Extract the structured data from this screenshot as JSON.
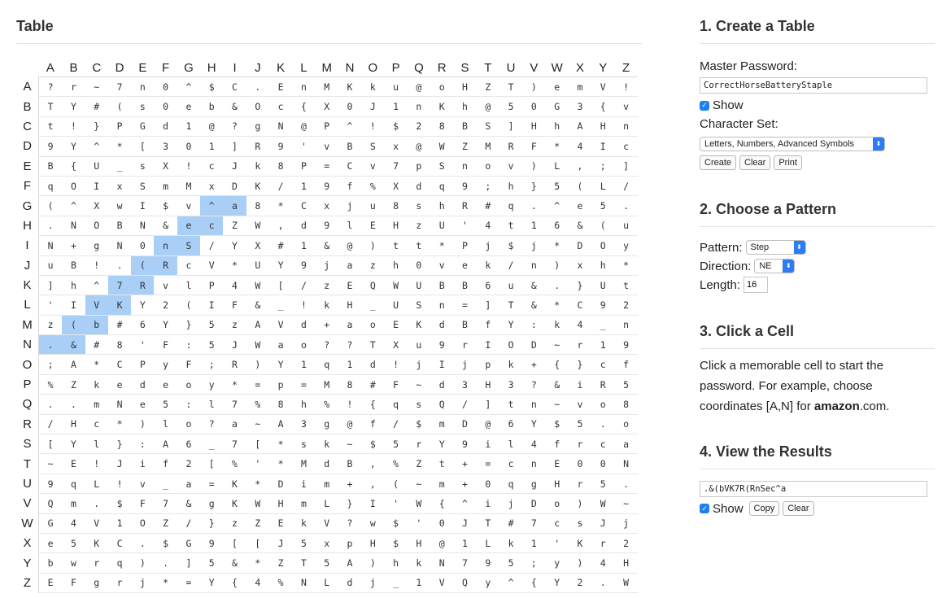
{
  "table_title": "Table",
  "columns": [
    "A",
    "B",
    "C",
    "D",
    "E",
    "F",
    "G",
    "H",
    "I",
    "J",
    "K",
    "L",
    "M",
    "N",
    "O",
    "P",
    "Q",
    "R",
    "S",
    "T",
    "U",
    "V",
    "W",
    "X",
    "Y",
    "Z"
  ],
  "rows": [
    {
      "label": "A",
      "cells": [
        "?",
        "r",
        "~",
        "7",
        "n",
        "0",
        "^",
        "$",
        "C",
        ".",
        "E",
        "n",
        "M",
        "K",
        "k",
        "u",
        "@",
        "o",
        "H",
        "Z",
        "T",
        ")",
        "e",
        "m",
        "V",
        "!"
      ]
    },
    {
      "label": "B",
      "cells": [
        "T",
        "Y",
        "#",
        "(",
        "s",
        "0",
        "e",
        "b",
        "&",
        "O",
        "c",
        "{",
        "X",
        "0",
        "J",
        "1",
        "n",
        "K",
        "h",
        "@",
        "5",
        "0",
        "G",
        "3",
        "{",
        "v"
      ]
    },
    {
      "label": "C",
      "cells": [
        "t",
        "!",
        "}",
        "P",
        "G",
        "d",
        "1",
        "@",
        "?",
        "g",
        "N",
        "@",
        "P",
        "^",
        "!",
        "$",
        "2",
        "8",
        "B",
        "S",
        "]",
        "H",
        "h",
        "A",
        "H",
        "n"
      ]
    },
    {
      "label": "D",
      "cells": [
        "9",
        "Y",
        "^",
        "*",
        "[",
        "3",
        "0",
        "1",
        "]",
        "R",
        "9",
        "'",
        "v",
        "B",
        "S",
        "x",
        "@",
        "W",
        "Z",
        "M",
        "R",
        "F",
        "*",
        "4",
        "I",
        "c"
      ]
    },
    {
      "label": "E",
      "cells": [
        "B",
        "{",
        "U",
        "_",
        "s",
        "X",
        "!",
        "c",
        "J",
        "k",
        "8",
        "P",
        "=",
        "C",
        "v",
        "7",
        "p",
        "S",
        "n",
        "o",
        "v",
        ")",
        "L",
        ",",
        ";",
        "]"
      ]
    },
    {
      "label": "F",
      "cells": [
        "q",
        "O",
        "I",
        "x",
        "S",
        "m",
        "M",
        "x",
        "D",
        "K",
        "/",
        "1",
        "9",
        "f",
        "%",
        "X",
        "d",
        "q",
        "9",
        ";",
        "h",
        "}",
        "5",
        "(",
        "L",
        "/"
      ]
    },
    {
      "label": "G",
      "cells": [
        "(",
        "^",
        "X",
        "w",
        "I",
        "$",
        "v",
        "^",
        "a",
        "8",
        "*",
        "C",
        "x",
        "j",
        "u",
        "8",
        "s",
        "h",
        "R",
        "#",
        "q",
        ".",
        "^",
        "e",
        "5",
        "."
      ]
    },
    {
      "label": "H",
      "cells": [
        ".",
        "N",
        "O",
        "B",
        "N",
        "&",
        "e",
        "c",
        "Z",
        "W",
        ",",
        "d",
        "9",
        "l",
        "E",
        "H",
        "z",
        "U",
        "'",
        "4",
        "t",
        "1",
        "6",
        "&",
        "(",
        "u"
      ]
    },
    {
      "label": "I",
      "cells": [
        "N",
        "+",
        "g",
        "N",
        "0",
        "n",
        "S",
        "/",
        "Y",
        "X",
        "#",
        "1",
        "&",
        "@",
        ")",
        "t",
        "t",
        "*",
        "P",
        "j",
        "$",
        "j",
        "*",
        "D",
        "O",
        "y"
      ]
    },
    {
      "label": "J",
      "cells": [
        "u",
        "B",
        "!",
        ".",
        "(",
        "R",
        "c",
        "V",
        "*",
        "U",
        "Y",
        "9",
        "j",
        "a",
        "z",
        "h",
        "0",
        "v",
        "e",
        "k",
        "/",
        "n",
        ")",
        "x",
        "h",
        "*"
      ]
    },
    {
      "label": "K",
      "cells": [
        "]",
        "h",
        "^",
        "7",
        "R",
        "v",
        "l",
        "P",
        "4",
        "W",
        "[",
        "/",
        "z",
        "E",
        "Q",
        "W",
        "U",
        "B",
        "B",
        "6",
        "u",
        "&",
        ".",
        "}",
        "U",
        "t"
      ]
    },
    {
      "label": "L",
      "cells": [
        "'",
        "I",
        "V",
        "K",
        "Y",
        "2",
        "(",
        "I",
        "F",
        "&",
        "_",
        "!",
        "k",
        "H",
        "_",
        "U",
        "S",
        "n",
        "=",
        "]",
        "T",
        "&",
        "*",
        "C",
        "9",
        "2"
      ]
    },
    {
      "label": "M",
      "cells": [
        "z",
        "(",
        "b",
        "#",
        "6",
        "Y",
        "}",
        "5",
        "z",
        "A",
        "V",
        "d",
        "+",
        "a",
        "o",
        "E",
        "K",
        "d",
        "B",
        "f",
        "Y",
        ":",
        "k",
        "4",
        "_",
        "n"
      ]
    },
    {
      "label": "N",
      "cells": [
        ".",
        "&",
        "#",
        "8",
        "'",
        "F",
        ":",
        "5",
        "J",
        "W",
        "a",
        "o",
        "?",
        "?",
        "T",
        "X",
        "u",
        "9",
        "r",
        "I",
        "O",
        "D",
        "~",
        "r",
        "1",
        "9"
      ]
    },
    {
      "label": "O",
      "cells": [
        ";",
        "A",
        "*",
        "C",
        "P",
        "y",
        "F",
        ";",
        "R",
        ")",
        "Y",
        "1",
        "q",
        "1",
        "d",
        "!",
        "j",
        "I",
        "j",
        "p",
        "k",
        "+",
        "{",
        "}",
        "c",
        "f"
      ]
    },
    {
      "label": "P",
      "cells": [
        "%",
        "Z",
        "k",
        "e",
        "d",
        "e",
        "o",
        "y",
        "*",
        "=",
        "p",
        "=",
        "M",
        "8",
        "#",
        "F",
        "~",
        "d",
        "3",
        "H",
        "3",
        "?",
        "&",
        "i",
        "R",
        "5"
      ]
    },
    {
      "label": "Q",
      "cells": [
        ".",
        ".",
        "m",
        "N",
        "e",
        "5",
        ":",
        "l",
        "7",
        "%",
        "8",
        "h",
        "%",
        "!",
        "{",
        "q",
        "s",
        "Q",
        "/",
        "]",
        "t",
        "n",
        "~",
        "v",
        "o",
        "8"
      ]
    },
    {
      "label": "R",
      "cells": [
        "/",
        "H",
        "c",
        "*",
        ")",
        "l",
        "o",
        "?",
        "a",
        "~",
        "A",
        "3",
        "g",
        "@",
        "f",
        "/",
        "$",
        "m",
        "D",
        "@",
        "6",
        "Y",
        "$",
        "5",
        ".",
        "o"
      ]
    },
    {
      "label": "S",
      "cells": [
        "[",
        "Y",
        "l",
        "}",
        ":",
        "A",
        "6",
        "_",
        "7",
        "[",
        "*",
        "s",
        "k",
        "~",
        "$",
        "5",
        "r",
        "Y",
        "9",
        "i",
        "l",
        "4",
        "f",
        "r",
        "c",
        "a"
      ]
    },
    {
      "label": "T",
      "cells": [
        "~",
        "E",
        "!",
        "J",
        "i",
        "f",
        "2",
        "[",
        "%",
        "'",
        "*",
        "M",
        "d",
        "B",
        ",",
        "%",
        "Z",
        "t",
        "+",
        "=",
        "c",
        "n",
        "E",
        "0",
        "0",
        "N"
      ]
    },
    {
      "label": "U",
      "cells": [
        "9",
        "q",
        "L",
        "!",
        "v",
        "_",
        "a",
        "=",
        "K",
        "*",
        "D",
        "i",
        "m",
        "+",
        ",",
        "(",
        "~",
        "m",
        "+",
        "0",
        "q",
        "g",
        "H",
        "r",
        "5",
        "."
      ]
    },
    {
      "label": "V",
      "cells": [
        "Q",
        "m",
        ".",
        "$",
        "F",
        "7",
        "&",
        "g",
        "K",
        "W",
        "H",
        "m",
        "L",
        "}",
        "I",
        "'",
        "W",
        "{",
        "^",
        "i",
        "j",
        "D",
        "o",
        ")",
        "W",
        "~"
      ]
    },
    {
      "label": "W",
      "cells": [
        "G",
        "4",
        "V",
        "1",
        "O",
        "Z",
        "/",
        "}",
        "z",
        "Z",
        "E",
        "k",
        "V",
        "?",
        "w",
        "$",
        "'",
        "0",
        "J",
        "T",
        "#",
        "7",
        "c",
        "s",
        "J",
        "j"
      ]
    },
    {
      "label": "X",
      "cells": [
        "e",
        "5",
        "K",
        "C",
        ".",
        "$",
        "G",
        "9",
        "[",
        "[",
        "J",
        "5",
        "x",
        "p",
        "H",
        "$",
        "H",
        "@",
        "1",
        "L",
        "k",
        "1",
        "'",
        "K",
        "r",
        "2"
      ]
    },
    {
      "label": "Y",
      "cells": [
        "b",
        "w",
        "r",
        "q",
        ")",
        ".",
        "]",
        "5",
        "&",
        "*",
        "Z",
        "T",
        "5",
        "A",
        ")",
        "h",
        "k",
        "N",
        "7",
        "9",
        "5",
        ";",
        "y",
        ")",
        "4",
        "H"
      ]
    },
    {
      "label": "Z",
      "cells": [
        "E",
        "F",
        "g",
        "r",
        "j",
        "*",
        "=",
        "Y",
        "{",
        "4",
        "%",
        "N",
        "L",
        "d",
        "j",
        "_",
        "1",
        "V",
        "Q",
        "y",
        "^",
        "{",
        "Y",
        "2",
        ".",
        "W"
      ]
    }
  ],
  "highlighted_cells": [
    [
      13,
      0
    ],
    [
      13,
      1
    ],
    [
      12,
      1
    ],
    [
      12,
      2
    ],
    [
      11,
      2
    ],
    [
      11,
      3
    ],
    [
      10,
      3
    ],
    [
      10,
      4
    ],
    [
      9,
      4
    ],
    [
      9,
      5
    ],
    [
      8,
      5
    ],
    [
      8,
      6
    ],
    [
      7,
      6
    ],
    [
      7,
      7
    ],
    [
      6,
      7
    ],
    [
      6,
      8
    ]
  ],
  "highlight_color": "#a9cff7",
  "create": {
    "title": "1. Create a Table",
    "master_label": "Master Password:",
    "master_value": "CorrectHorseBatteryStaple",
    "show_label": "Show",
    "charset_label": "Character Set:",
    "charset_value": "Letters, Numbers, Advanced Symbols",
    "create_btn": "Create",
    "clear_btn": "Clear",
    "print_btn": "Print"
  },
  "pattern": {
    "title": "2. Choose a Pattern",
    "pattern_label": "Pattern:",
    "pattern_value": "Step",
    "direction_label": "Direction:",
    "direction_value": "NE",
    "length_label": "Length:",
    "length_value": "16"
  },
  "click": {
    "title": "3. Click a Cell",
    "text_pre": "Click a memorable cell to start the password. For example, choose coordinates [A,N] for ",
    "text_bold": "amazon",
    "text_post": ".com."
  },
  "results": {
    "title": "4. View the Results",
    "value": ".&(bVK7R(RnSec^a",
    "show_label": "Show",
    "copy_btn": "Copy",
    "clear_btn": "Clear"
  },
  "accent_color": "#1f7ff0"
}
